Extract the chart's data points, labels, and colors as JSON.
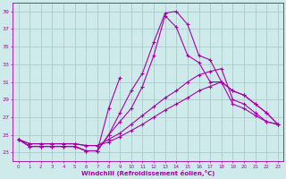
{
  "background_color": "#ceeaea",
  "grid_color": "#aacccc",
  "line_color": "#aa00aa",
  "xlim": [
    -0.5,
    23.5
  ],
  "ylim": [
    22,
    40
  ],
  "yticks": [
    23,
    25,
    27,
    29,
    31,
    33,
    35,
    37,
    39
  ],
  "xticks": [
    0,
    1,
    2,
    3,
    4,
    5,
    6,
    7,
    8,
    9,
    10,
    11,
    12,
    13,
    14,
    15,
    16,
    17,
    18,
    19,
    20,
    21,
    22,
    23
  ],
  "xlabel": "Windchill (Refroidissement éolien,°C)",
  "series": [
    [
      24.5,
      23.7,
      23.7,
      23.7,
      23.7,
      23.7,
      23.2,
      23.2,
      28.0,
      31.5,
      null,
      null,
      null,
      null,
      null,
      null,
      null,
      null,
      null,
      null,
      null,
      null,
      null,
      null
    ],
    [
      24.5,
      23.7,
      23.7,
      23.7,
      23.7,
      23.7,
      23.2,
      23.2,
      25.0,
      27.5,
      30.0,
      32.0,
      35.5,
      38.8,
      39.0,
      37.5,
      34.0,
      33.5,
      31.0,
      30.0,
      29.5,
      28.5,
      27.5,
      26.2
    ],
    [
      24.5,
      23.7,
      23.7,
      23.7,
      23.7,
      23.7,
      23.2,
      23.2,
      25.0,
      26.5,
      28.0,
      30.5,
      34.0,
      38.5,
      37.2,
      34.0,
      33.2,
      31.0,
      31.0,
      30.0,
      29.5,
      28.5,
      27.5,
      26.2
    ],
    [
      24.5,
      24.0,
      24.0,
      24.0,
      24.0,
      24.0,
      23.8,
      23.8,
      24.5,
      25.2,
      26.2,
      27.2,
      28.2,
      29.2,
      30.0,
      31.0,
      31.8,
      32.2,
      32.5,
      29.0,
      28.5,
      27.5,
      26.5,
      26.2
    ],
    [
      24.5,
      24.0,
      24.0,
      24.0,
      24.0,
      24.0,
      23.8,
      23.8,
      24.2,
      24.8,
      25.5,
      26.2,
      27.0,
      27.8,
      28.5,
      29.2,
      30.0,
      30.5,
      31.0,
      28.5,
      28.0,
      27.2,
      26.5,
      26.2
    ]
  ]
}
